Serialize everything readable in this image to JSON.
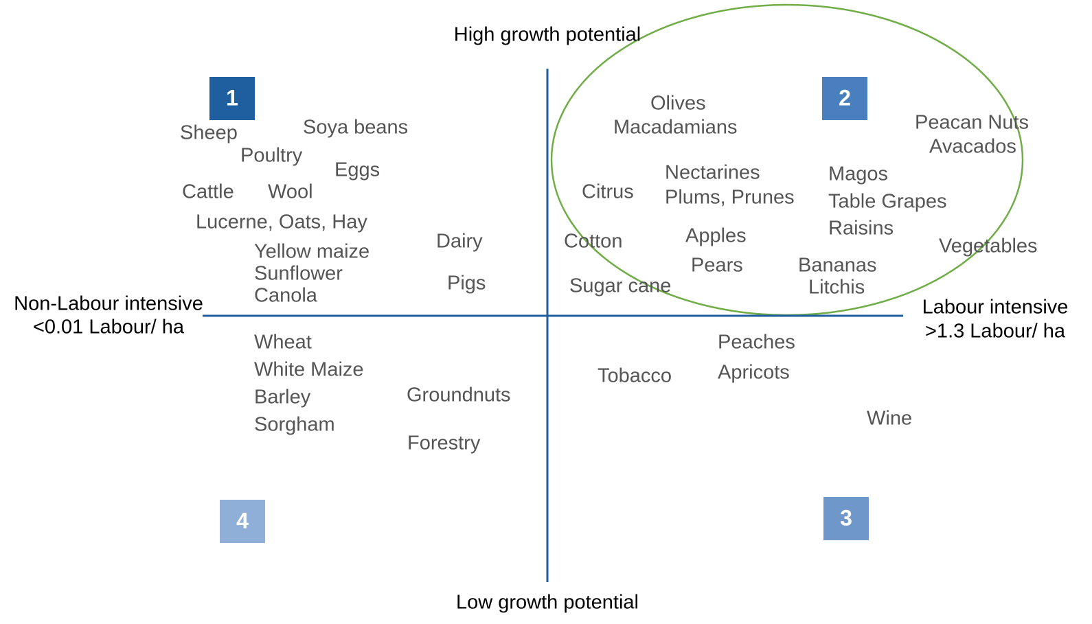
{
  "axes": {
    "top": "High growth potential",
    "bottom": "Low growth potential",
    "left": [
      "Non-Labour intensive",
      "<0.01 Labour/ ha"
    ],
    "right": [
      "Labour intensive",
      ">1.3 Labour/ ha"
    ]
  },
  "quadrants": [
    {
      "number": "1",
      "items": [
        "Sheep",
        "Soya beans",
        "Poultry",
        "Eggs",
        "Cattle",
        "Wool",
        "Lucerne, Oats, Hay",
        "Yellow maize",
        "Sunflower",
        "Canola",
        "Dairy",
        "Pigs"
      ]
    },
    {
      "number": "2",
      "items": [
        "Olives",
        "Macadamians",
        "Peacan Nuts",
        "Avacados",
        "Citrus",
        "Nectarines",
        "Plums, Prunes",
        "Magos",
        "Table Grapes",
        "Raisins",
        "Cotton",
        "Apples",
        "Pears",
        "Vegetables",
        "Bananas",
        "Litchis",
        "Sugar cane"
      ]
    },
    {
      "number": "3",
      "items": [
        "Peaches",
        "Apricots",
        "Tobacco",
        "Wine"
      ]
    },
    {
      "number": "4",
      "items": [
        "Wheat",
        "White Maize",
        "Barley",
        "Sorgham",
        "Groundnuts",
        "Forestry"
      ]
    }
  ]
}
